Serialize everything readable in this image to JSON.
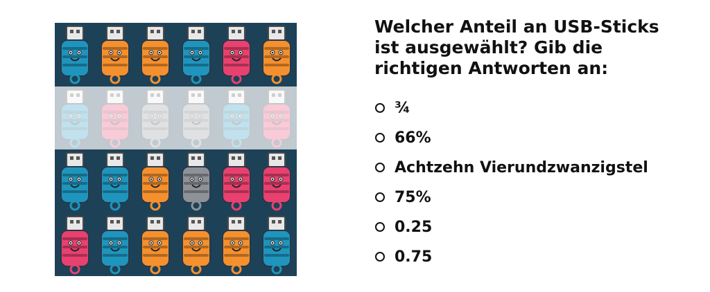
{
  "question": "Welcher Anteil an USB-Sticks ist ausgewählt? Gib die richtigen Antworten an:",
  "options": [
    "¾",
    "66%",
    "Achtzehn Vierundzwanzigstel",
    "75%",
    "0.25",
    "0.75"
  ],
  "image": {
    "background_color": "#1d4258",
    "selected_row": 1,
    "rows": [
      [
        "blue",
        "orange",
        "orange",
        "blue",
        "pink",
        "orange"
      ],
      [
        "blue",
        "pink",
        "gray",
        "gray",
        "blue",
        "pink"
      ],
      [
        "blue",
        "blue",
        "orange",
        "gray",
        "pink",
        "pink"
      ],
      [
        "pink",
        "blue",
        "orange",
        "orange",
        "orange",
        "blue"
      ]
    ],
    "colors": {
      "blue": "#1f95bd",
      "orange": "#f5902e",
      "pink": "#e8416f",
      "gray": "#8e9298"
    }
  }
}
